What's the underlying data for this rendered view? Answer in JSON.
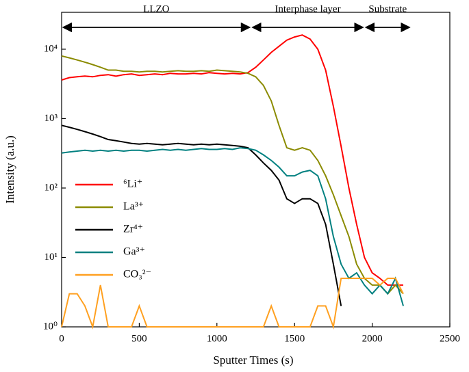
{
  "chart_data": {
    "type": "line",
    "xlabel": "Sputter Times (s)",
    "ylabel": "Intensity (a.u.)",
    "log_y": true,
    "legend": "center left",
    "xlim": [
      0,
      2500
    ],
    "ylim": [
      1,
      34000
    ],
    "xticks": [
      0,
      500,
      1000,
      1500,
      2000,
      2500
    ],
    "yticks": [
      {
        "value": 1,
        "label": "10⁰"
      },
      {
        "value": 10,
        "label": "10¹"
      },
      {
        "value": 100,
        "label": "10²"
      },
      {
        "value": 1000,
        "label": "10³"
      },
      {
        "value": 10000,
        "label": "10⁴"
      }
    ],
    "annotations": [
      {
        "text": "LLZO",
        "x": [
          0,
          1220
        ]
      },
      {
        "text": "Interphase layer",
        "x": [
          1220,
          1950
        ]
      },
      {
        "text": "Substrate",
        "x": [
          1950,
          2250
        ]
      }
    ],
    "x": [
      0,
      50,
      100,
      150,
      200,
      250,
      300,
      350,
      400,
      450,
      500,
      550,
      600,
      650,
      700,
      750,
      800,
      850,
      900,
      950,
      1000,
      1050,
      1100,
      1150,
      1200,
      1250,
      1300,
      1350,
      1400,
      1450,
      1500,
      1550,
      1600,
      1650,
      1700,
      1750,
      1800,
      1850,
      1900,
      1950,
      2000,
      2050,
      2100,
      2150,
      2200
    ],
    "series": [
      {
        "name": "⁶Li⁺",
        "color": "#ff0000",
        "values": [
          3600,
          3900,
          4000,
          4100,
          4000,
          4200,
          4300,
          4100,
          4300,
          4400,
          4200,
          4300,
          4400,
          4300,
          4500,
          4400,
          4400,
          4500,
          4400,
          4600,
          4500,
          4400,
          4500,
          4400,
          4600,
          5500,
          7000,
          9000,
          11000,
          13500,
          15000,
          16000,
          14000,
          10000,
          5000,
          1500,
          400,
          100,
          30,
          10,
          6,
          5,
          4,
          4,
          4
        ]
      },
      {
        "name": "La³⁺",
        "color": "#8b8b00",
        "values": [
          8000,
          7500,
          7000,
          6500,
          6000,
          5500,
          5000,
          5000,
          4800,
          4800,
          4700,
          4800,
          4800,
          4700,
          4800,
          4900,
          4800,
          4800,
          4900,
          4800,
          5000,
          4900,
          4800,
          4700,
          4500,
          4000,
          3000,
          1800,
          800,
          380,
          350,
          380,
          350,
          250,
          150,
          80,
          40,
          20,
          8,
          5,
          4,
          4,
          3,
          4,
          3
        ]
      },
      {
        "name": "Zr⁴⁺",
        "color": "#000000",
        "values": [
          800,
          750,
          700,
          650,
          600,
          550,
          500,
          480,
          460,
          440,
          430,
          440,
          430,
          420,
          430,
          440,
          430,
          420,
          430,
          420,
          430,
          420,
          410,
          400,
          380,
          300,
          230,
          180,
          130,
          70,
          60,
          70,
          70,
          60,
          30,
          8,
          2,
          null,
          null,
          null,
          null,
          null,
          null,
          null,
          null
        ]
      },
      {
        "name": "Ga³⁺",
        "color": "#008080",
        "values": [
          320,
          330,
          340,
          350,
          340,
          350,
          340,
          350,
          340,
          350,
          350,
          340,
          350,
          360,
          350,
          360,
          350,
          360,
          370,
          360,
          360,
          370,
          360,
          380,
          370,
          350,
          300,
          250,
          200,
          150,
          150,
          170,
          180,
          150,
          70,
          20,
          8,
          5,
          6,
          4,
          3,
          4,
          3,
          5,
          2
        ]
      },
      {
        "name": "CO₃²⁻",
        "color": "#ffa020",
        "values": [
          1,
          3,
          3,
          2,
          1,
          4,
          1,
          1,
          1,
          1,
          2,
          1,
          1,
          1,
          1,
          1,
          1,
          1,
          1,
          1,
          1,
          1,
          1,
          1,
          1,
          1,
          1,
          2,
          1,
          1,
          1,
          1,
          1,
          2,
          2,
          1,
          5,
          5,
          5,
          5,
          5,
          4,
          5,
          5,
          3
        ]
      }
    ]
  }
}
